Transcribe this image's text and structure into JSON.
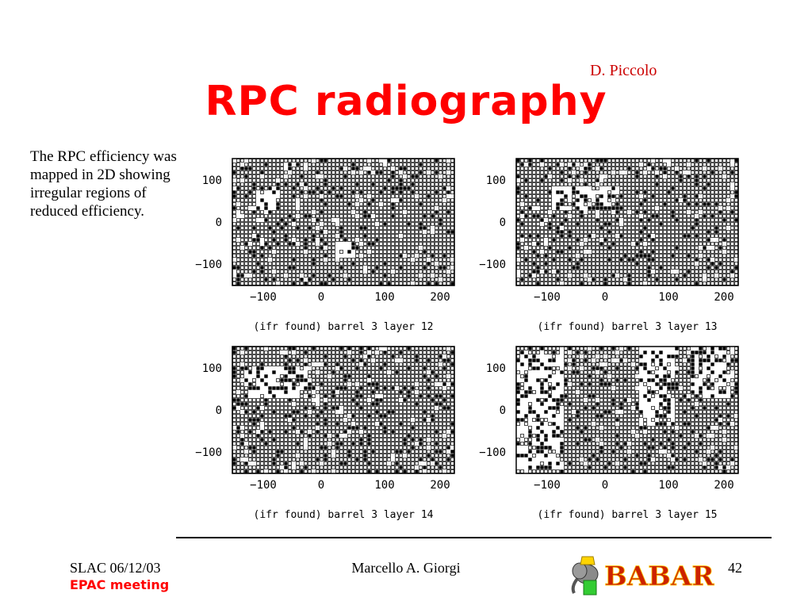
{
  "slide": {
    "author": "D. Piccolo",
    "title": "RPC radiography",
    "description": "The RPC efficiency was mapped in 2D showing irregular regions of reduced efficiency."
  },
  "panels": [
    {
      "caption": "(ifr found) barrel 3 layer 12",
      "y_ticks": [
        "100",
        "0",
        "−100"
      ],
      "x_ticks": [
        "−100",
        "0",
        "100",
        "200"
      ],
      "dead_regions": [
        [
          0.45,
          0.55,
          0.65,
          0.78
        ],
        [
          0.1,
          0.2,
          0.25,
          0.4
        ]
      ]
    },
    {
      "caption": "(ifr found) barrel 3 layer 13",
      "y_ticks": [
        "100",
        "0",
        "−100"
      ],
      "x_ticks": [
        "−100",
        "0",
        "100",
        "200"
      ],
      "dead_regions": [
        [
          0.15,
          0.45,
          0.2,
          0.4
        ]
      ]
    },
    {
      "caption": "(ifr found) barrel 3 layer 14",
      "y_ticks": [
        "100",
        "0",
        "−100"
      ],
      "x_ticks": [
        "−100",
        "0",
        "100",
        "200"
      ],
      "dead_regions": [
        [
          0.05,
          0.35,
          0.15,
          0.4
        ]
      ]
    },
    {
      "caption": "(ifr found) barrel 3 layer 15",
      "y_ticks": [
        "100",
        "0",
        "−100"
      ],
      "x_ticks": [
        "−100",
        "0",
        "100",
        "200"
      ],
      "dead_regions": [
        [
          0.0,
          0.2,
          0.05,
          0.95
        ],
        [
          0.55,
          0.7,
          0.0,
          0.6
        ],
        [
          0.78,
          0.95,
          0.0,
          0.4
        ]
      ]
    }
  ],
  "footer": {
    "date": "SLAC 06/12/03",
    "meeting": "EPAC meeting",
    "presenter": "Marcello A. Giorgi",
    "page": "42",
    "logo_text": "BABAR"
  },
  "colors": {
    "title": "#ff0000",
    "author": "#cc0000",
    "logo_text": "#cc2200"
  }
}
